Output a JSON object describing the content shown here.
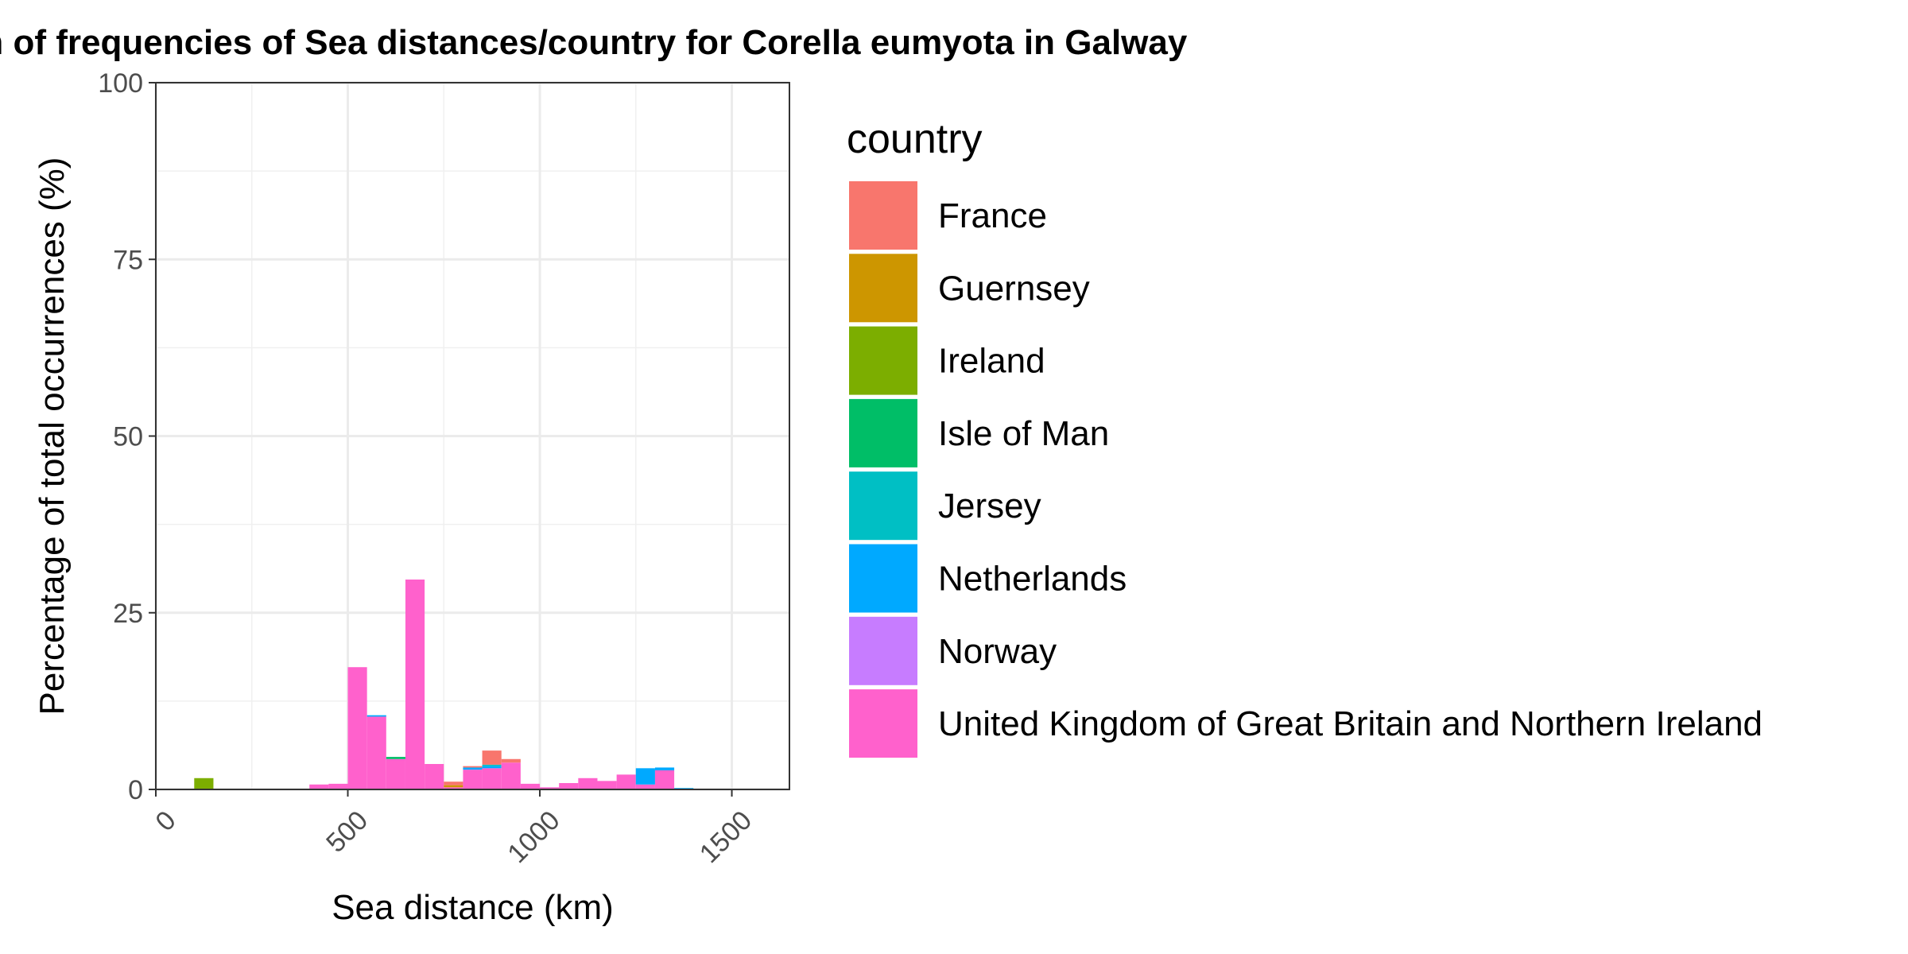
{
  "chart_data": {
    "type": "bar",
    "stacked": true,
    "title": "Histogram of frequencies of Sea distances/country for Corella eumyota in Galway",
    "xlabel": "Sea distance (km)",
    "ylabel": "Percentage of total occurrences (%)",
    "xlim": [
      0,
      1650
    ],
    "ylim": [
      0,
      100
    ],
    "x_ticks": [
      0,
      500,
      1000,
      1500
    ],
    "y_ticks": [
      0,
      25,
      50,
      75,
      100
    ],
    "grid": true,
    "legend_title": "country",
    "legend_position": "right",
    "bin_width": 50,
    "series": [
      {
        "name": "France",
        "color": "#F8766D",
        "bins": [
          [
            775,
            0.5
          ],
          [
            825,
            0.2
          ],
          [
            875,
            2.0
          ],
          [
            925,
            0.5
          ]
        ]
      },
      {
        "name": "Guernsey",
        "color": "#CD9600",
        "bins": [
          [
            775,
            0.3
          ]
        ]
      },
      {
        "name": "Ireland",
        "color": "#7CAE00",
        "bins": [
          [
            125,
            1.6
          ]
        ]
      },
      {
        "name": "Isle of Man",
        "color": "#00BE67",
        "bins": [
          [
            625,
            0.3
          ]
        ]
      },
      {
        "name": "Jersey",
        "color": "#00BFC4",
        "bins": [
          [
            875,
            0.2
          ]
        ]
      },
      {
        "name": "Netherlands",
        "color": "#00A9FF",
        "bins": [
          [
            575,
            0.2
          ],
          [
            825,
            0.3
          ],
          [
            875,
            0.3
          ],
          [
            1275,
            2.3
          ],
          [
            1325,
            0.4
          ],
          [
            1375,
            0.2
          ]
        ]
      },
      {
        "name": "Norway",
        "color": "#C77CFF",
        "bins": []
      },
      {
        "name": "United Kingdom of Great Britain and Northern Ireland",
        "color": "#FF61CC",
        "bins": [
          [
            425,
            0.7
          ],
          [
            475,
            0.8
          ],
          [
            525,
            17.3
          ],
          [
            575,
            10.3
          ],
          [
            625,
            4.3
          ],
          [
            675,
            29.7
          ],
          [
            725,
            3.6
          ],
          [
            775,
            0.3
          ],
          [
            825,
            2.8
          ],
          [
            875,
            3.0
          ],
          [
            925,
            3.8
          ],
          [
            975,
            0.8
          ],
          [
            1025,
            0.3
          ],
          [
            1075,
            0.9
          ],
          [
            1125,
            1.6
          ],
          [
            1175,
            1.2
          ],
          [
            1225,
            2.1
          ],
          [
            1275,
            0.7
          ],
          [
            1325,
            2.7
          ]
        ]
      }
    ]
  }
}
